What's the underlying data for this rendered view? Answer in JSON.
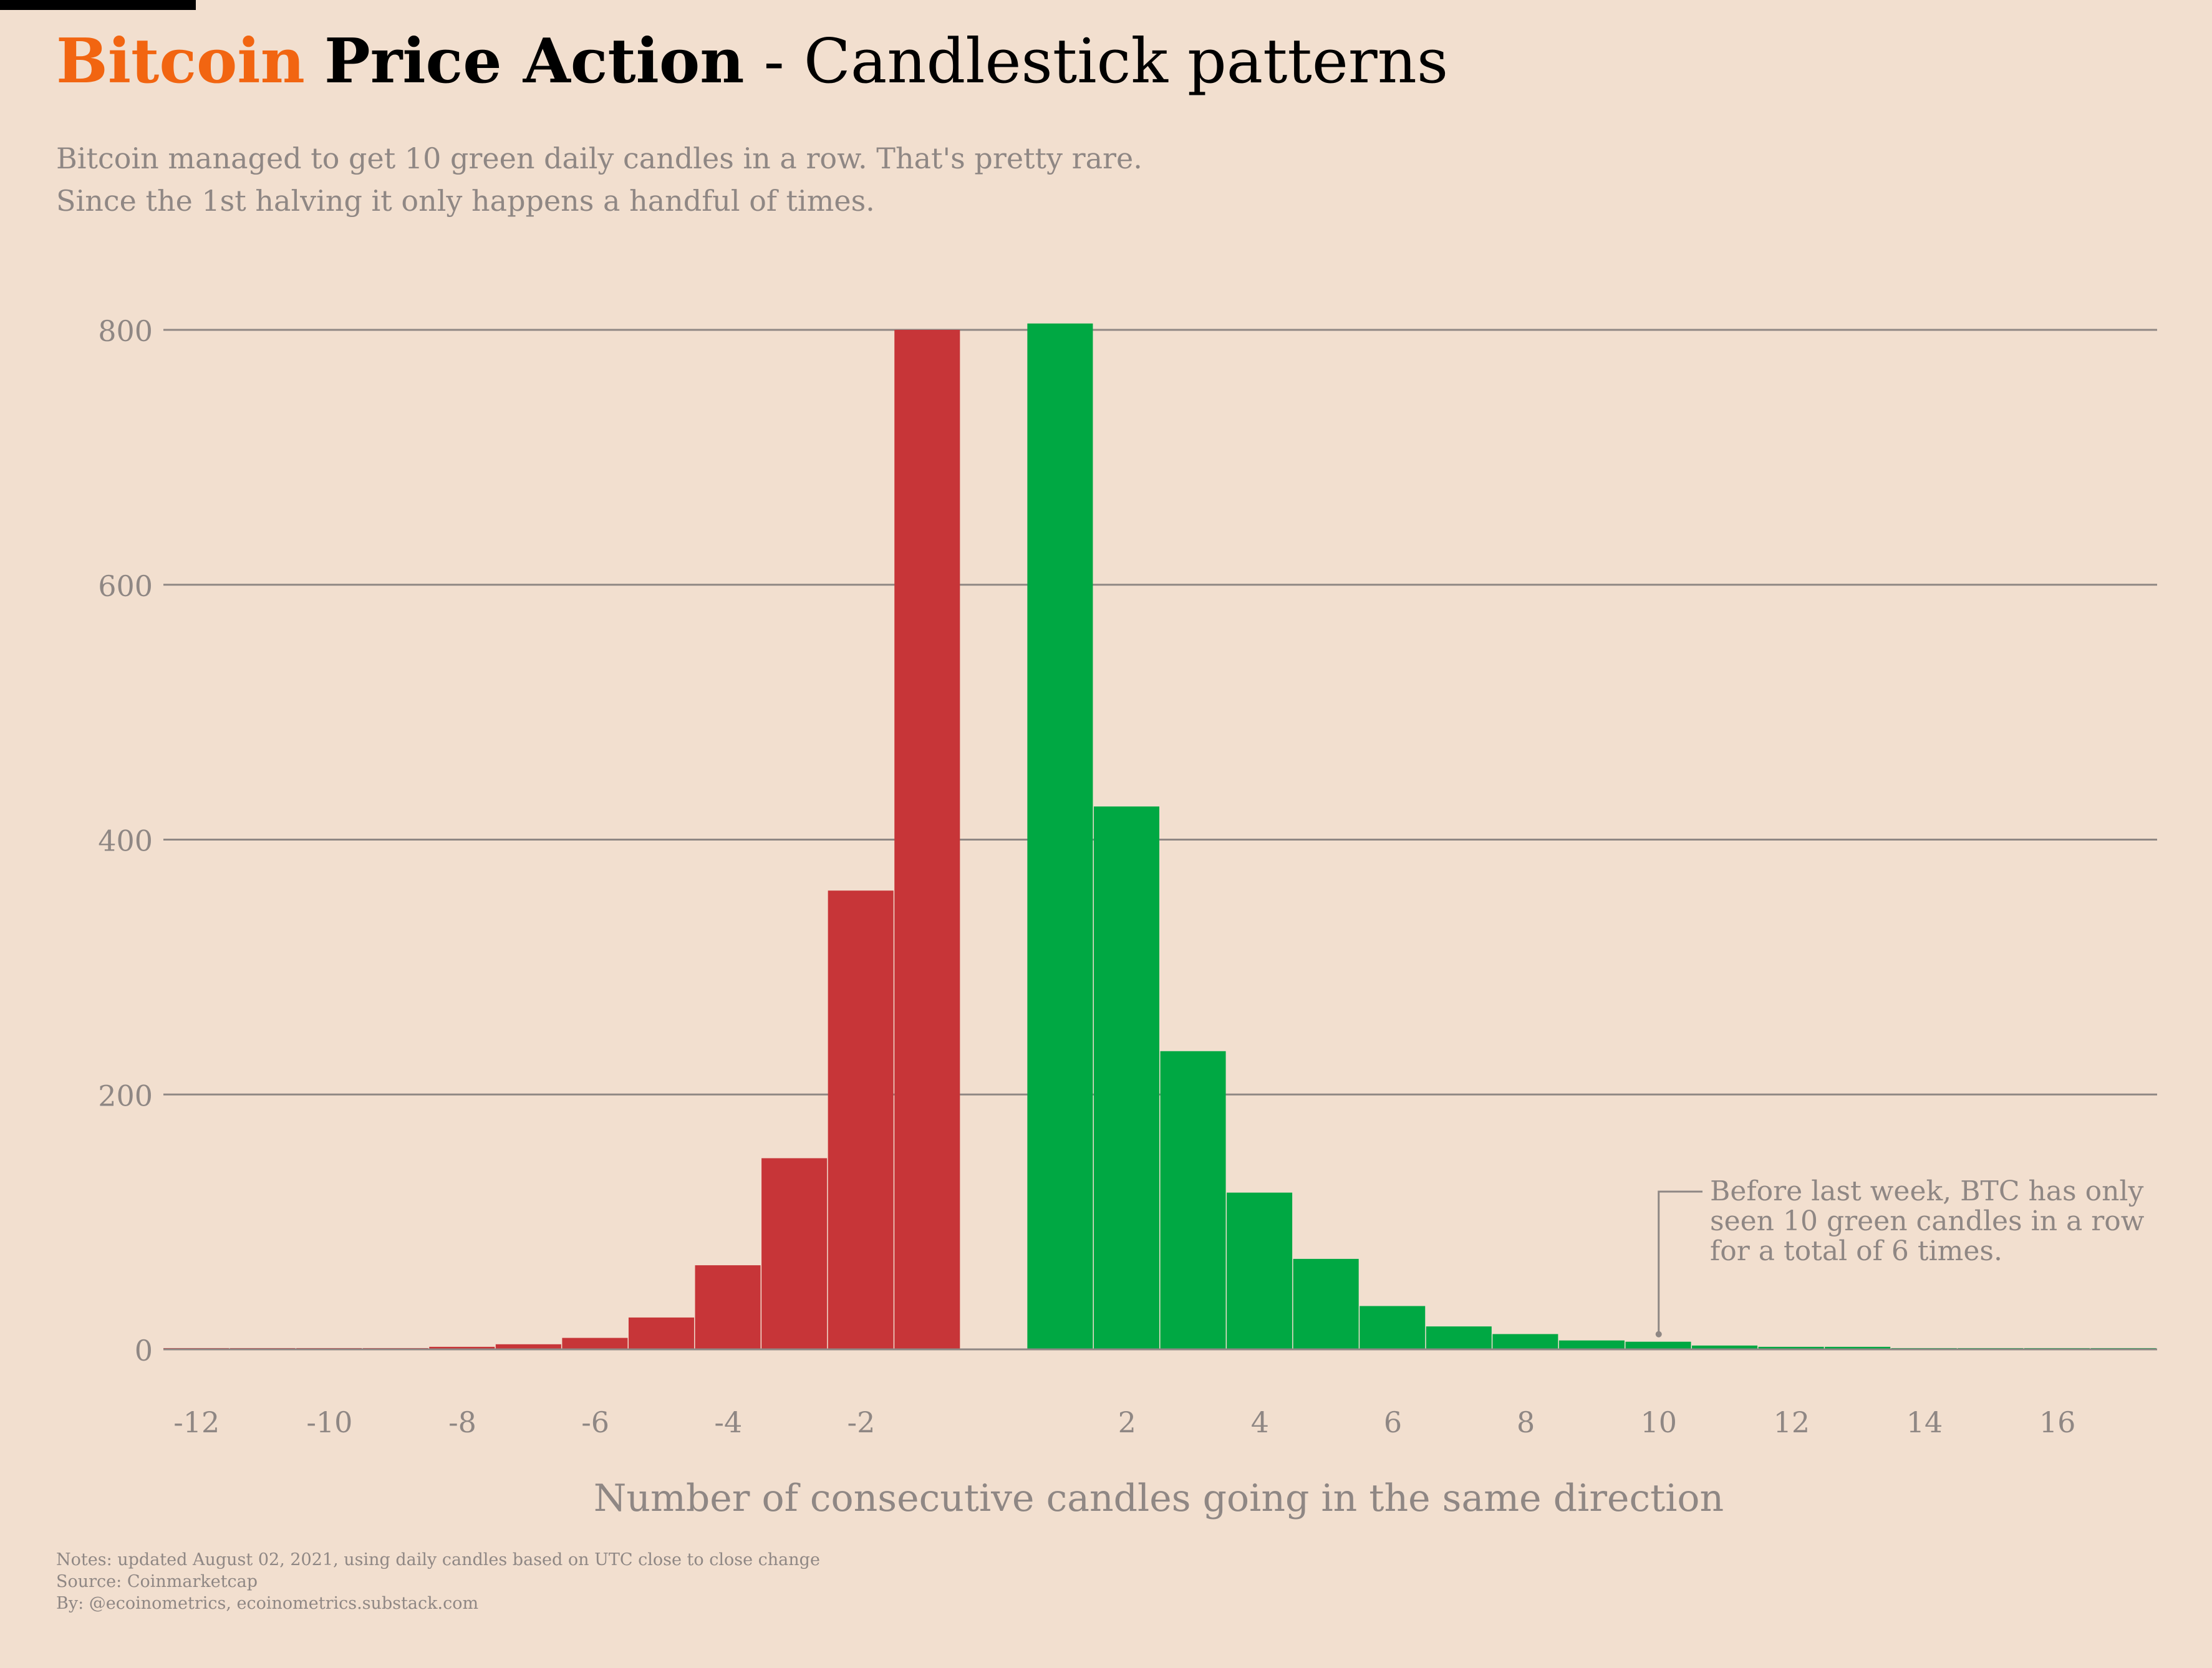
{
  "header": {
    "title_brand": "Bitcoin",
    "title_main": "Price Action",
    "title_rest": "- Candlestick patterns",
    "subtitle_line1": "Bitcoin managed to get 10 green daily candles in a row. That's pretty rare.",
    "subtitle_line2": "Since the 1st halving it only happens a handful of times."
  },
  "footer": {
    "notes": "Notes: updated August 02, 2021, using daily candles based on UTC close to close change",
    "source": "Source: Coinmarketcap",
    "by": "By: @ecoinometrics, ecoinometrics.substack.com"
  },
  "colors": {
    "background": "#f2dfcf",
    "brand": "#f26511",
    "negative": "#c73538",
    "positive": "#00a843",
    "grid": "#8f8784",
    "text_muted": "#8f8784"
  },
  "chart_data": {
    "type": "bar",
    "title": "Bitcoin Price Action - Candlestick patterns",
    "xlabel": "Number of consecutive candles going in the same direction",
    "ylabel": "",
    "xlim": [
      -12.5,
      17.5
    ],
    "ylim": [
      0,
      800
    ],
    "yticks": [
      0,
      200,
      400,
      600,
      800
    ],
    "xticks": [
      -12,
      -10,
      -8,
      -6,
      -4,
      -2,
      2,
      4,
      6,
      8,
      10,
      12,
      14,
      16
    ],
    "grid": "horizontal",
    "series": [
      {
        "name": "",
        "color": "#c73538",
        "x": [
          -12,
          -11,
          -10,
          -9,
          -8,
          -7,
          -6,
          -5,
          -4,
          -3,
          -2,
          -1
        ],
        "values": [
          1,
          1,
          1,
          1,
          2,
          4,
          9,
          25,
          66,
          150,
          360,
          800
        ]
      },
      {
        "name": "",
        "color": "#00a843",
        "x": [
          1,
          2,
          3,
          4,
          5,
          6,
          7,
          8,
          9,
          10,
          11,
          12,
          13,
          14,
          15,
          16,
          17
        ],
        "values": [
          805,
          426,
          234,
          123,
          71,
          34,
          18,
          12,
          7,
          6,
          3,
          2,
          2,
          1,
          1,
          1,
          1
        ]
      }
    ],
    "annotations": [
      {
        "text": "Before last week, BTC has only seen 10 green candles in a row for a total of 6 times.",
        "lines": [
          "Before last week, BTC has only",
          "seen 10 green candles in a row",
          "for a total of 6 times."
        ],
        "x": 10,
        "y": 6
      }
    ]
  }
}
